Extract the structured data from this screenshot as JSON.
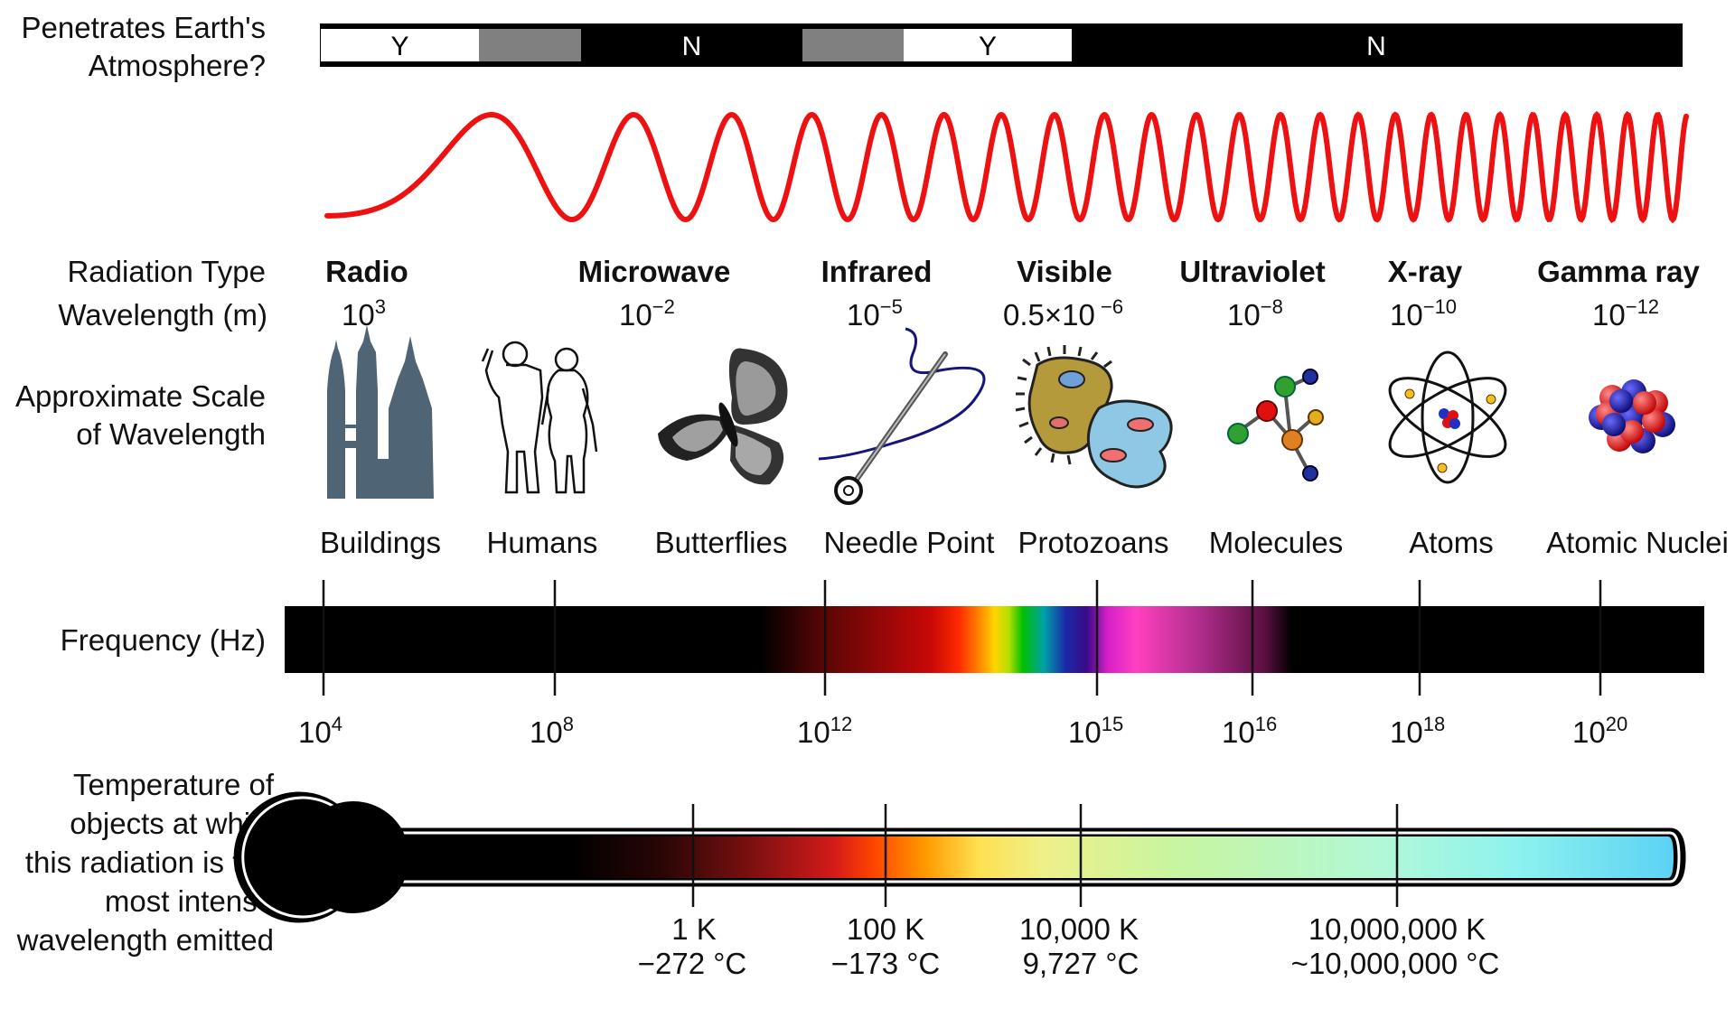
{
  "atmosphere": {
    "label_lines": [
      "Penetrates Earth's",
      "Atmosphere?"
    ],
    "segments": [
      {
        "text": "Y",
        "color": "#ffffff"
      },
      {
        "text": "",
        "color": "#808080"
      },
      {
        "text": "N",
        "color": "#000000"
      },
      {
        "text": "",
        "color": "#808080"
      },
      {
        "text": "Y",
        "color": "#ffffff"
      },
      {
        "text": "N",
        "color": "#000000"
      }
    ]
  },
  "wave_color": "#ee1111",
  "row_labels": {
    "radiation_type": "Radiation Type",
    "wavelength": "Wavelength (m)",
    "scale_lines": [
      "Approximate Scale",
      "of Wavelength"
    ],
    "frequency": "Frequency (Hz)",
    "temperature_lines": [
      "Temperature of",
      "objects at which",
      "this radiation is the",
      "most intense",
      "wavelength emitted"
    ]
  },
  "radiation_types": [
    {
      "name": "Radio",
      "wl_base": "10",
      "wl_exp": "3"
    },
    {
      "name": "Microwave",
      "wl_base": "10",
      "wl_exp": "−2"
    },
    {
      "name": "Infrared",
      "wl_base": "10",
      "wl_exp": "−5"
    },
    {
      "name": "Visible",
      "wl_base": "0.5×10",
      "wl_exp": " −6"
    },
    {
      "name": "Ultraviolet",
      "wl_base": "10",
      "wl_exp": "−8"
    },
    {
      "name": "X-ray",
      "wl_base": "10",
      "wl_exp": "−10"
    },
    {
      "name": "Gamma ray",
      "wl_base": "10",
      "wl_exp": "−12"
    }
  ],
  "scale_objects": [
    {
      "label": "Buildings",
      "icon": "buildings-icon"
    },
    {
      "label": "Humans",
      "icon": "humans-icon"
    },
    {
      "label": "Butterflies",
      "icon": "butterfly-icon"
    },
    {
      "label": "Needle Point",
      "icon": "needle-icon"
    },
    {
      "label": "Protozoans",
      "icon": "protozoan-icon"
    },
    {
      "label": "Molecules",
      "icon": "molecule-icon"
    },
    {
      "label": "Atoms",
      "icon": "atom-icon"
    },
    {
      "label": "Atomic Nuclei",
      "icon": "nucleus-icon"
    }
  ],
  "frequency_ticks": [
    {
      "base": "10",
      "exp": "4"
    },
    {
      "base": "10",
      "exp": "8"
    },
    {
      "base": "10",
      "exp": "12"
    },
    {
      "base": "10",
      "exp": "15"
    },
    {
      "base": "10",
      "exp": "16"
    },
    {
      "base": "10",
      "exp": "18"
    },
    {
      "base": "10",
      "exp": "20"
    }
  ],
  "temperature_ticks": [
    {
      "kelvin": "1 K",
      "celsius": "−272 °C"
    },
    {
      "kelvin": "100 K",
      "celsius": "−173 °C"
    },
    {
      "kelvin": "10,000 K",
      "celsius": "9,727 °C"
    },
    {
      "kelvin": "10,000,000 K",
      "celsius": "~10,000,000 °C"
    }
  ]
}
